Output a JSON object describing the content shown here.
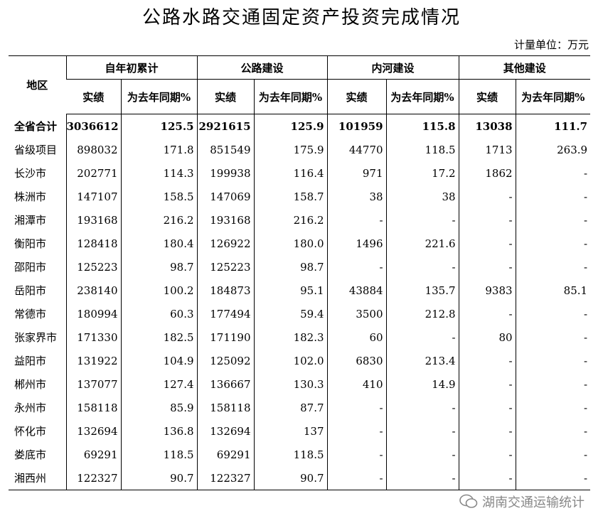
{
  "title": "公路水路交通固定资产投资完成情况",
  "unit": "计量单位：万元",
  "table": {
    "region_header": "地区",
    "groups": [
      "自年初累计",
      "公路建设",
      "内河建设",
      "其他建设"
    ],
    "subheaders": [
      "实绩",
      "为去年同期%",
      "实绩",
      "为去年同期%",
      "实绩",
      "为去年同期%",
      "实绩",
      "为去年同期%"
    ],
    "rows": [
      [
        "全省合计",
        "3036612",
        "125.5",
        "2921615",
        "125.9",
        "101959",
        "115.8",
        "13038",
        "111.7"
      ],
      [
        "省级项目",
        "898032",
        "171.8",
        "851549",
        "175.9",
        "44770",
        "118.5",
        "1713",
        "263.9"
      ],
      [
        "长沙市",
        "202771",
        "114.3",
        "199938",
        "116.4",
        "971",
        "17.2",
        "1862",
        "-"
      ],
      [
        "株洲市",
        "147107",
        "158.5",
        "147069",
        "158.7",
        "38",
        "38",
        "-",
        "-"
      ],
      [
        "湘潭市",
        "193168",
        "216.2",
        "193168",
        "216.2",
        "-",
        "-",
        "-",
        "-"
      ],
      [
        "衡阳市",
        "128418",
        "180.4",
        "126922",
        "180.0",
        "1496",
        "221.6",
        "-",
        "-"
      ],
      [
        "邵阳市",
        "125223",
        "98.7",
        "125223",
        "98.7",
        "-",
        "-",
        "-",
        "-"
      ],
      [
        "岳阳市",
        "238140",
        "100.2",
        "184873",
        "95.1",
        "43884",
        "135.7",
        "9383",
        "85.1"
      ],
      [
        "常德市",
        "180994",
        "60.3",
        "177494",
        "59.4",
        "3500",
        "212.8",
        "-",
        "-"
      ],
      [
        "张家界市",
        "171330",
        "182.5",
        "171190",
        "182.3",
        "60",
        "-",
        "80",
        "-"
      ],
      [
        "益阳市",
        "131922",
        "104.9",
        "125092",
        "102.0",
        "6830",
        "213.4",
        "-",
        "-"
      ],
      [
        "郴州市",
        "137077",
        "127.4",
        "136667",
        "130.3",
        "410",
        "14.9",
        "-",
        "-"
      ],
      [
        "永州市",
        "158118",
        "85.9",
        "158118",
        "87.7",
        "-",
        "-",
        "-",
        "-"
      ],
      [
        "怀化市",
        "132694",
        "136.8",
        "132694",
        "137",
        "-",
        "-",
        "-",
        "-"
      ],
      [
        "娄底市",
        "69291",
        "118.5",
        "69291",
        "118.5",
        "-",
        "-",
        "-",
        "-"
      ],
      [
        "湘西州",
        "122327",
        "90.7",
        "122327",
        "90.7",
        "-",
        "-",
        "-",
        "-"
      ]
    ]
  },
  "watermark": "湖南交通运输统计"
}
